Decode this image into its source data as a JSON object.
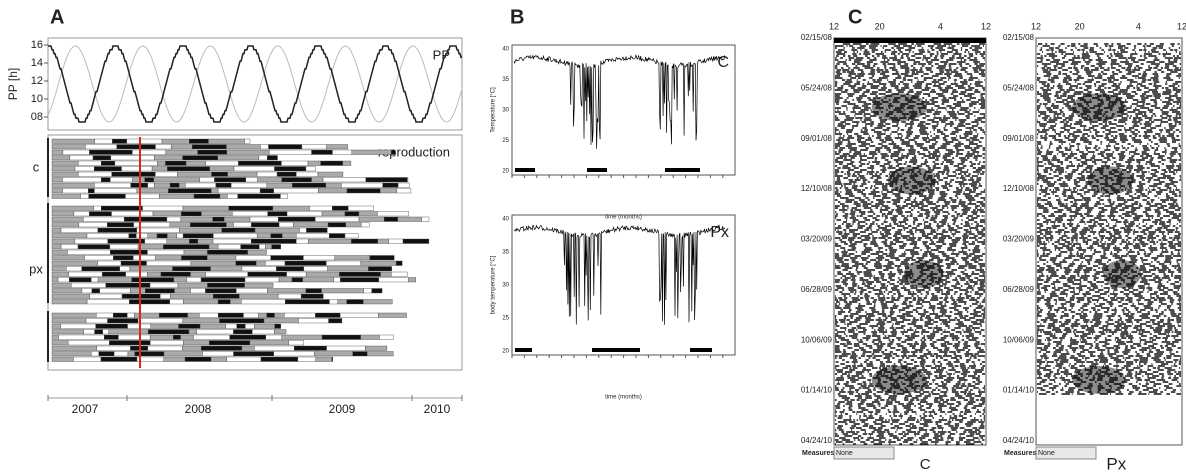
{
  "panel_a": {
    "label": "A",
    "pp_axis_label": "PP [h]",
    "pp_ticks": [
      "16",
      "14",
      "12",
      "10",
      "08"
    ],
    "pp_legend": "PP",
    "reproduction": "reproduction",
    "groups": [
      "c",
      "px"
    ],
    "years": [
      "2007",
      "2008",
      "2009",
      "2010"
    ]
  },
  "panel_b": {
    "label": "B",
    "top": {
      "tag": "C",
      "y_label": "Temperature [°C]",
      "yticks": [
        "40",
        "35",
        "30",
        "25",
        "20"
      ],
      "x_label": "time (months)"
    },
    "bottom": {
      "tag": "Px",
      "y_label": "body temperature [°C]",
      "yticks": [
        "40",
        "35",
        "30",
        "25",
        "20"
      ],
      "x_label": "time (months)"
    }
  },
  "panel_c": {
    "label": "C",
    "hour_ticks": [
      "12",
      "20",
      "4",
      "12"
    ],
    "dates": [
      "02/15/08",
      "05/24/08",
      "09/01/08",
      "12/10/08",
      "03/20/09",
      "06/28/09",
      "10/06/09",
      "01/14/10",
      "04/24/10"
    ],
    "measures": "Measures:",
    "select": "None",
    "captions": [
      "C",
      "Px"
    ]
  }
}
